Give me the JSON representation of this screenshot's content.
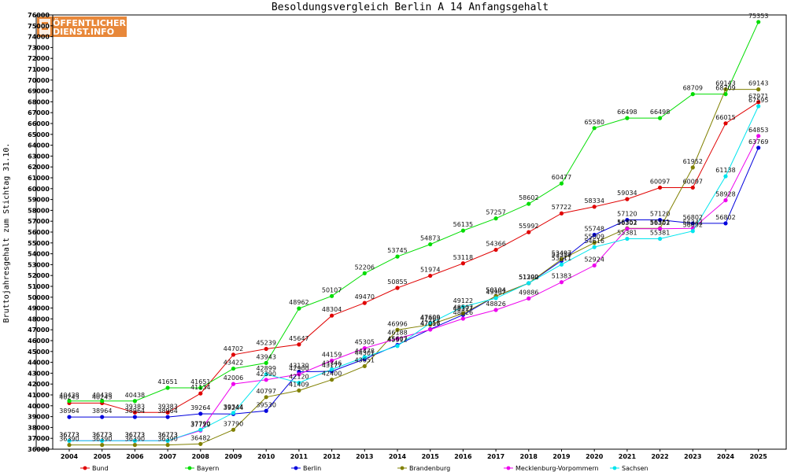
{
  "logo": {
    "line1": "ÖFFENTLICHER",
    "line2": "DIENST.INFO",
    "color": "#e8883a"
  },
  "chart_data": {
    "type": "line",
    "title": "Besoldungsvergleich Berlin A 14 Anfangsgehalt",
    "xlabel": "",
    "ylabel": "Bruttojahresgehalt zum Stichtag 31.10.",
    "ylim": [
      36000,
      76000
    ],
    "ytick_step": 1000,
    "grid": false,
    "legend_position": "bottom",
    "categories": [
      "2004",
      "2005",
      "2006",
      "2007",
      "2008",
      "2009",
      "2010",
      "2011",
      "2012",
      "2013",
      "2014",
      "2015",
      "2016",
      "2017",
      "2018",
      "2019",
      "2020",
      "2021",
      "2022",
      "2023",
      "2024",
      "2025"
    ],
    "series": [
      {
        "name": "Bund",
        "color": "#e00000",
        "values": [
          40243,
          40243,
          39383,
          39383,
          41134,
          44702,
          45239,
          45647,
          48304,
          49470,
          50855,
          51974,
          53118,
          54366,
          55992,
          57722,
          58334,
          59034,
          60097,
          60097,
          66015,
          67971
        ]
      },
      {
        "name": "Bayern",
        "color": "#00dd00",
        "values": [
          40438,
          40438,
          40438,
          41651,
          41651,
          43422,
          43943,
          48962,
          50107,
          52206,
          53745,
          54873,
          56135,
          57257,
          58602,
          60477,
          65580,
          66498,
          66498,
          68709,
          68709,
          75353
        ]
      },
      {
        "name": "Berlin",
        "color": "#0000dd",
        "values": [
          38964,
          38964,
          38964,
          38964,
          39264,
          39244,
          39530,
          43130,
          43177,
          44301,
          45607,
          47056,
          48377,
          50104,
          51290,
          53359,
          55748,
          57120,
          57120,
          56802,
          56802,
          63769
        ]
      },
      {
        "name": "Brandenburg",
        "color": "#808000",
        "values": [
          36390,
          36390,
          36390,
          36390,
          36482,
          37790,
          40797,
          41409,
          42400,
          43651,
          46996,
          47469,
          48507,
          50104,
          51290,
          53497,
          55009,
          56351,
          56351,
          61952,
          69143,
          69143
        ]
      },
      {
        "name": "Mecklenburg-Vorpommern",
        "color": "#ee00ee",
        "values": [
          36773,
          36773,
          36773,
          36773,
          37719,
          42006,
          42390,
          42900,
          44159,
          45305,
          46188,
          47017,
          48026,
          48826,
          49886,
          51383,
          52924,
          56302,
          56302,
          56342,
          58928,
          64853
        ]
      },
      {
        "name": "Sachsen",
        "color": "#00e5ee",
        "values": [
          36773,
          36773,
          36773,
          36773,
          37790,
          39344,
          42899,
          42120,
          43346,
          44478,
          45512,
          47609,
          49122,
          49907,
          51302,
          53011,
          54616,
          55381,
          55381,
          56092,
          61138,
          67595
        ]
      }
    ]
  }
}
